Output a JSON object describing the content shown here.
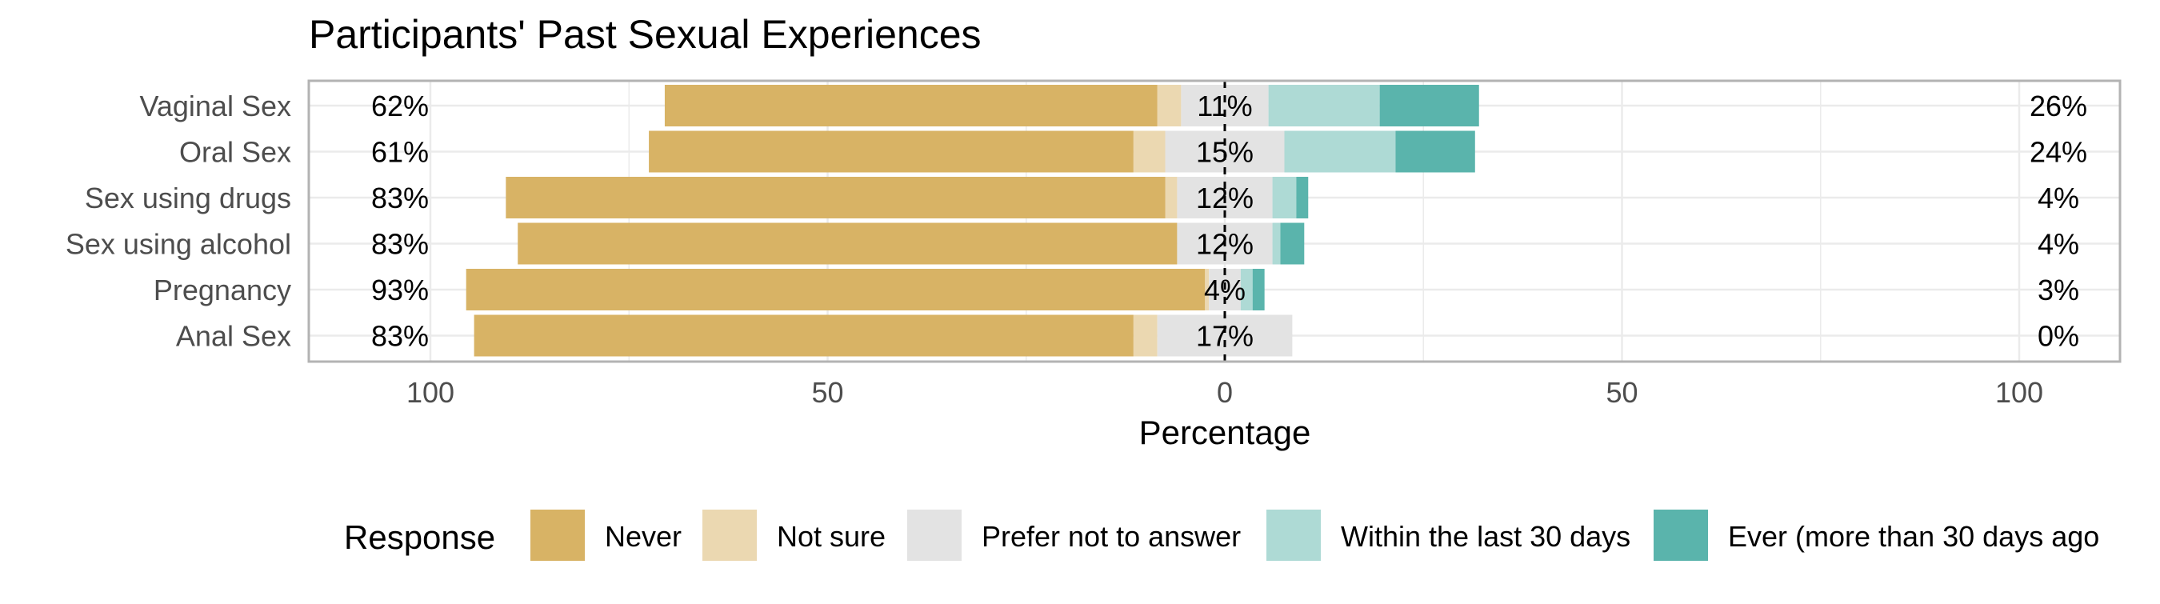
{
  "chart_data": {
    "type": "bar",
    "subtype": "diverging-stacked-likert",
    "title": "Participants' Past Sexual Experiences",
    "xlabel": "Percentage",
    "ylabel": "",
    "xlim": [
      -115,
      115
    ],
    "x_ticks": [
      -100,
      -50,
      0,
      50,
      100
    ],
    "x_tick_labels": [
      "100",
      "50",
      "0",
      "50",
      "100"
    ],
    "grid": true,
    "legend_position": "bottom",
    "legend_title": "Response",
    "categories": [
      "Vaginal Sex",
      "Oral Sex",
      "Sex using drugs",
      "Sex using alcohol",
      "Pregnancy",
      "Anal Sex"
    ],
    "series": [
      {
        "name": "Never",
        "color": "#D8B365",
        "values": [
          62,
          61,
          83,
          83,
          93,
          83
        ]
      },
      {
        "name": "Not sure",
        "color": "#EBD8B1",
        "values": [
          3,
          4,
          1.5,
          0,
          0.5,
          3
        ]
      },
      {
        "name": "Prefer not to answer",
        "color": "#E3E3E3",
        "values": [
          11,
          15,
          12,
          12,
          4,
          17
        ]
      },
      {
        "name": "Within the last 30 days",
        "color": "#AEDAD5",
        "values": [
          14,
          14,
          3,
          1,
          1.5,
          0
        ]
      },
      {
        "name": "Ever (more than 30 days ago",
        "color": "#5AB4AC",
        "values": [
          12.5,
          10,
          1.5,
          3,
          1.5,
          0
        ]
      }
    ],
    "label_left": [
      "62%",
      "61%",
      "83%",
      "83%",
      "93%",
      "83%"
    ],
    "label_center": [
      "11%",
      "15%",
      "12%",
      "12%",
      "4%",
      "17%"
    ],
    "label_right": [
      "26%",
      "24%",
      "4%",
      "4%",
      "3%",
      "0%"
    ]
  }
}
